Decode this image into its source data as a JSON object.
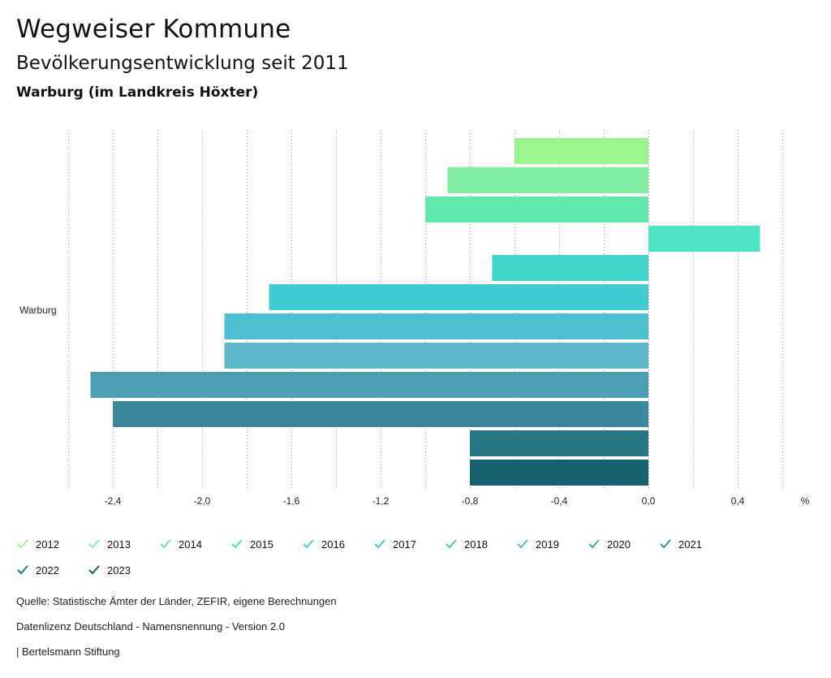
{
  "header": {
    "title": "Wegweiser Kommune",
    "subtitle": "Bevölkerungsentwicklung seit 2011",
    "region": "Warburg (im Landkreis Höxter)"
  },
  "chart_data": {
    "type": "bar",
    "orientation": "horizontal",
    "categories": [
      "Warburg"
    ],
    "unit": "%",
    "xlim": [
      -2.6,
      0.6
    ],
    "xticks": [
      -2.4,
      -2.0,
      -1.6,
      -1.2,
      -0.8,
      -0.4,
      0.0,
      0.4
    ],
    "xtick_labels": [
      "-2,4",
      "-2,0",
      "-1,6",
      "-1,2",
      "-0,8",
      "-0,4",
      "0,0",
      "0,4"
    ],
    "grid": "vertical dotted",
    "legend_position": "bottom",
    "series": [
      {
        "name": "2012",
        "values": [
          -0.6
        ],
        "color": "#9bf58f"
      },
      {
        "name": "2013",
        "values": [
          -0.9
        ],
        "color": "#80f0a0"
      },
      {
        "name": "2014",
        "values": [
          -1.0
        ],
        "color": "#63e9b0"
      },
      {
        "name": "2015",
        "values": [
          0.5
        ],
        "color": "#4de3c2"
      },
      {
        "name": "2016",
        "values": [
          -0.7
        ],
        "color": "#40d6cb"
      },
      {
        "name": "2017",
        "values": [
          -1.7
        ],
        "color": "#42cbd2"
      },
      {
        "name": "2018",
        "values": [
          -1.9
        ],
        "color": "#4dc0cf"
      },
      {
        "name": "2019",
        "values": [
          -1.9
        ],
        "color": "#5cb7c9"
      },
      {
        "name": "2020",
        "values": [
          -2.5
        ],
        "color": "#4c9fb3"
      },
      {
        "name": "2021",
        "values": [
          -2.4
        ],
        "color": "#3b889c"
      },
      {
        "name": "2022",
        "values": [
          -0.8
        ],
        "color": "#277686"
      },
      {
        "name": "2023",
        "values": [
          -0.8
        ],
        "color": "#176070"
      }
    ]
  },
  "footer": {
    "source": "Quelle: Statistische Ämter der Länder, ZEFIR, eigene Berechnungen",
    "license": "Datenlizenz Deutschland - Namensnennung - Version 2.0",
    "publisher": "| Bertelsmann Stiftung"
  }
}
